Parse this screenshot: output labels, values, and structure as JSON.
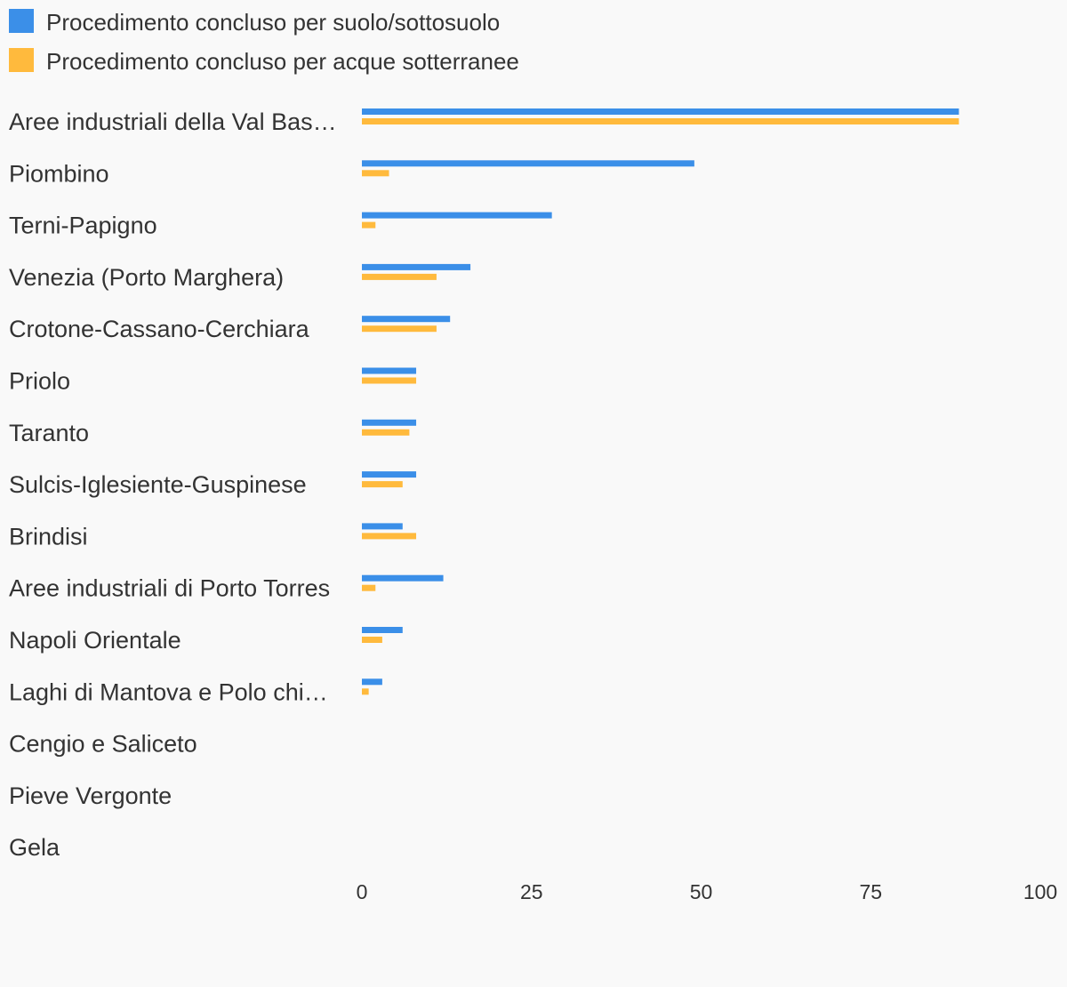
{
  "colors": {
    "series1": "#3b8fe8",
    "series2": "#ffba3d",
    "background": "#f9f9f9",
    "text": "#333333"
  },
  "chart_data": {
    "type": "bar",
    "orientation": "horizontal",
    "title": "",
    "xlabel": "",
    "ylabel": "",
    "xlim": [
      0,
      100
    ],
    "x_ticks": [
      "0",
      "25",
      "50",
      "75",
      "100"
    ],
    "grid": false,
    "legend_position": "top-left",
    "categories": [
      "Aree industriali della Val Bas…",
      "Piombino",
      "Terni-Papigno",
      "Venezia (Porto Marghera)",
      "Crotone-Cassano-Cerchiara",
      "Priolo",
      "Taranto",
      "Sulcis-Iglesiente-Guspinese",
      "Brindisi",
      "Aree industriali di Porto Torres",
      "Napoli Orientale",
      "Laghi di Mantova e Polo chi…",
      "Cengio e Saliceto",
      "Pieve Vergonte",
      "Gela"
    ],
    "series": [
      {
        "name": "Procedimento concluso per suolo/sottosuolo",
        "values": [
          88,
          49,
          28,
          16,
          13,
          8,
          8,
          8,
          6,
          12,
          6,
          3,
          0,
          0,
          0
        ]
      },
      {
        "name": "Procedimento concluso per acque sotterranee",
        "values": [
          88,
          4,
          2,
          11,
          11,
          8,
          7,
          6,
          8,
          2,
          3,
          1,
          0,
          0,
          0
        ]
      }
    ]
  }
}
